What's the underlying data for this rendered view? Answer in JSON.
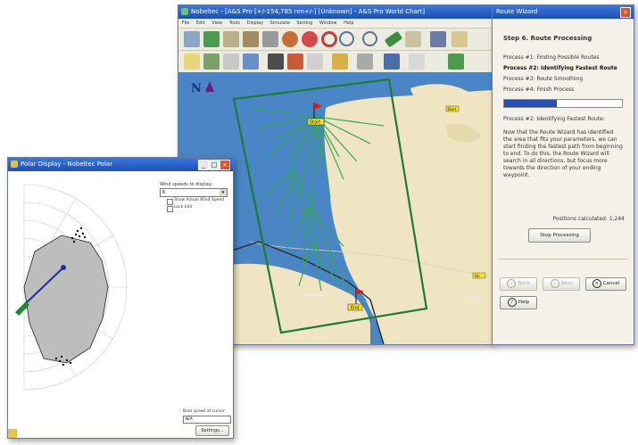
{
  "main_window": {
    "title": "Nobeltec - [A&S Pro [+/-154,785 nm+/-] [Unknown] - A&S Pro World Chart]",
    "menu": [
      "File",
      "Edit",
      "View",
      "Tools",
      "Display",
      "Simulate",
      "Setting",
      "Window",
      "Help"
    ],
    "map": {
      "north_label": "N",
      "start_label": "Start",
      "end_label": "End",
      "waypoint_labels": [
        "Start",
        "On"
      ],
      "colors": {
        "water": "#3f7fc0",
        "land": "#efe5c2",
        "route": "#2e9a4a",
        "box": "#1f7a35"
      }
    }
  },
  "route_wizard": {
    "title": "Route Wizard",
    "step_title": "Step 6. Route Processing",
    "processes": [
      {
        "label": "Process #1: Finding Possible Routes",
        "bold": false
      },
      {
        "label": "Process #2: Identifying Fastest Route",
        "bold": true
      },
      {
        "label": "Process #3: Route Smoothing",
        "bold": false
      },
      {
        "label": "Process #4: Finish Process",
        "bold": false
      }
    ],
    "progress_fraction": 0.45,
    "current_process": "Process #2: Identifying Fastest Route:",
    "description": "Now that the Route Wizard has identified the area that fits your parameters, we can start finding the fastest path from beginning to end. To do this, the Route Wizard will search in all directions, but focus more towards the direction of your ending waypoint.",
    "positions_label": "Positions calculated:",
    "positions_value": "1,244",
    "stop_button": "Stop Processing",
    "back_button": "Back",
    "next_button": "Next",
    "cancel_button": "Cancel",
    "help_button": "Help"
  },
  "polar_window": {
    "title": "Polar Display - Nobeltec Polar",
    "wind_speeds_label": "Wind speeds to display:",
    "wind_speed_value": "6",
    "show_actual_wind_label": "Show Actual Wind Speed",
    "lock_edit_label": "Lock Edit",
    "boat_speed_label": "Boat speed at cursor:",
    "boat_speed_value": "N/A",
    "settings_button": "Settings..."
  }
}
